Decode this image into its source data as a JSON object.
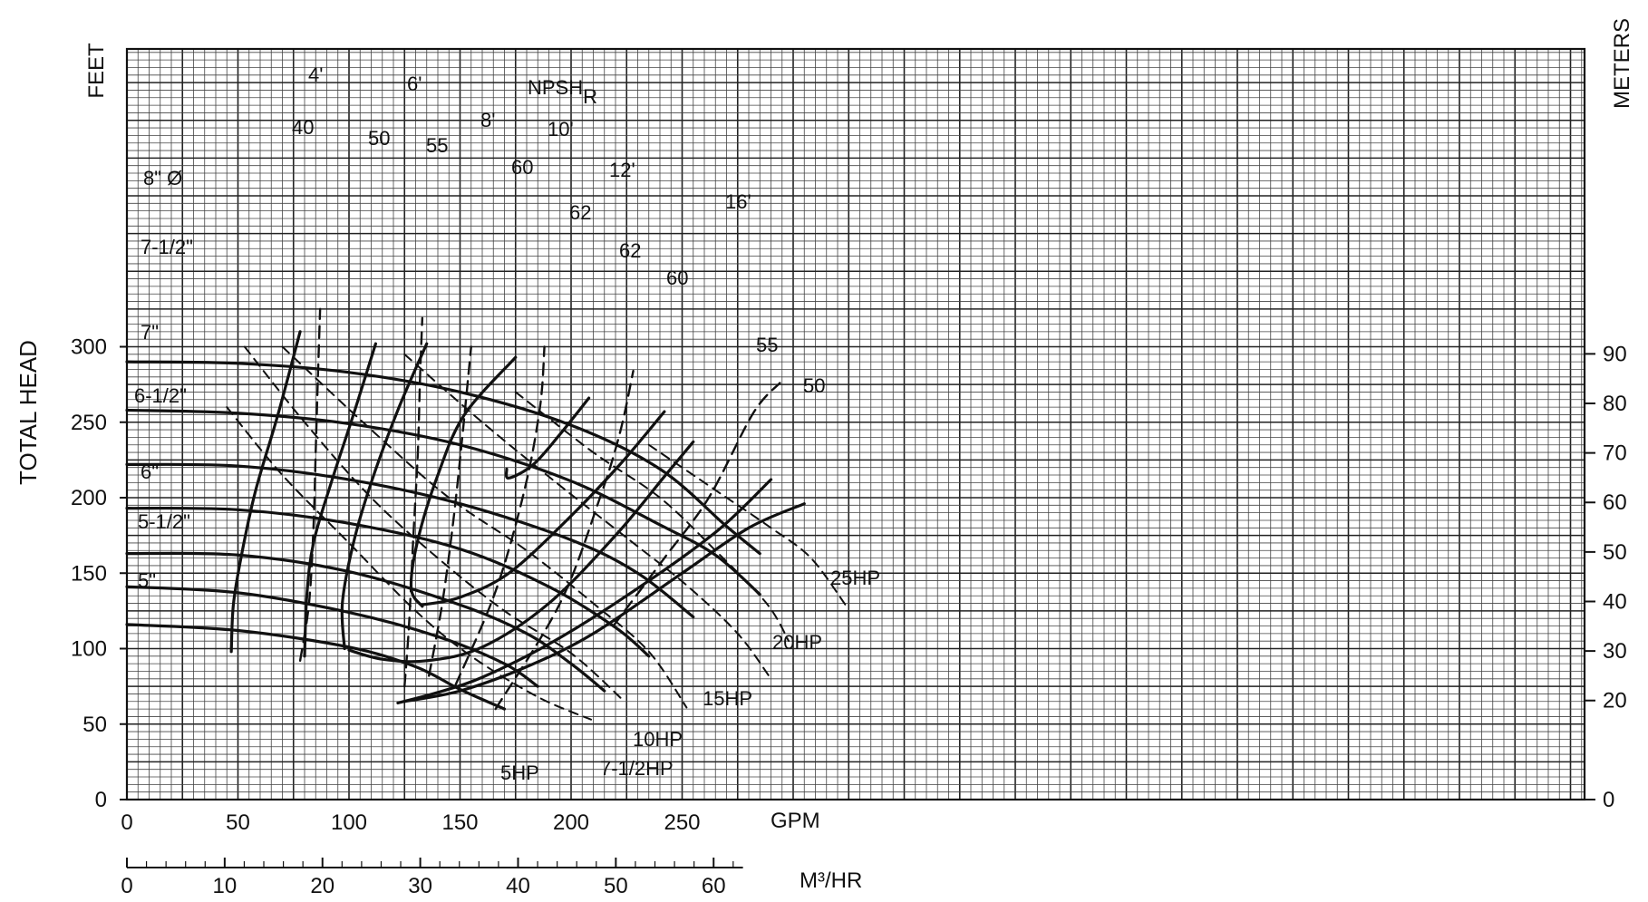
{
  "chart_data": {
    "type": "line",
    "y_axis_left": {
      "label": "TOTAL HEAD",
      "unit": "FEET",
      "ticks": [
        0,
        50,
        100,
        150,
        200,
        250,
        300
      ],
      "ylim": [
        0,
        345
      ]
    },
    "y_axis_right": {
      "label": "METERS",
      "ticks": [
        0,
        20,
        30,
        40,
        50,
        60,
        70,
        80,
        90
      ]
    },
    "x_axis": {
      "unit": "GPM",
      "ticks": [
        0,
        50,
        100,
        150,
        200,
        250
      ],
      "xlim": [
        0,
        650
      ]
    },
    "x_axis_secondary": {
      "unit": "M³/HR",
      "ticks": [
        0,
        10,
        20,
        30,
        40,
        50,
        60
      ]
    },
    "grid": true,
    "impeller_curves": [
      {
        "name": "8\" Ø",
        "points": [
          [
            0,
            290
          ],
          [
            50,
            289
          ],
          [
            100,
            283
          ],
          [
            150,
            270
          ],
          [
            200,
            248
          ],
          [
            240,
            219
          ],
          [
            270,
            181
          ],
          [
            285,
            163
          ]
        ]
      },
      {
        "name": "7-1/2\"",
        "points": [
          [
            0,
            258
          ],
          [
            50,
            256
          ],
          [
            100,
            249
          ],
          [
            150,
            235
          ],
          [
            200,
            211
          ],
          [
            240,
            182
          ],
          [
            265,
            162
          ],
          [
            285,
            136
          ]
        ]
      },
      {
        "name": "7\"",
        "points": [
          [
            0,
            222
          ],
          [
            50,
            221
          ],
          [
            100,
            212
          ],
          [
            150,
            196
          ],
          [
            200,
            172
          ],
          [
            230,
            150
          ],
          [
            255,
            121
          ]
        ]
      },
      {
        "name": "6-1/2\"",
        "points": [
          [
            0,
            193
          ],
          [
            50,
            192
          ],
          [
            100,
            183
          ],
          [
            150,
            166
          ],
          [
            190,
            141
          ],
          [
            220,
            114
          ],
          [
            235,
            95
          ]
        ]
      },
      {
        "name": "6\"",
        "points": [
          [
            0,
            163
          ],
          [
            50,
            162
          ],
          [
            100,
            151
          ],
          [
            150,
            129
          ],
          [
            180,
            110
          ],
          [
            200,
            90
          ],
          [
            215,
            72
          ]
        ]
      },
      {
        "name": "5-1/2\"",
        "points": [
          [
            0,
            141
          ],
          [
            50,
            137
          ],
          [
            100,
            124
          ],
          [
            140,
            108
          ],
          [
            170,
            90
          ],
          [
            185,
            75
          ]
        ]
      },
      {
        "name": "5\"",
        "points": [
          [
            0,
            116
          ],
          [
            50,
            112
          ],
          [
            100,
            101
          ],
          [
            130,
            88
          ],
          [
            150,
            73
          ],
          [
            170,
            60
          ]
        ]
      }
    ],
    "efficiency_curves": [
      {
        "name": "40",
        "points": [
          [
            47,
            98
          ],
          [
            48,
            130
          ],
          [
            52,
            165
          ],
          [
            58,
            205
          ],
          [
            68,
            255
          ],
          [
            78,
            310
          ]
        ]
      },
      {
        "name": "50",
        "points": [
          [
            80,
            95
          ],
          [
            81,
            135
          ],
          [
            84,
            170
          ],
          [
            92,
            210
          ],
          [
            102,
            255
          ],
          [
            112,
            302
          ]
        ]
      },
      {
        "name": "55",
        "points": [
          [
            98,
            100
          ],
          [
            97,
            130
          ],
          [
            102,
            170
          ],
          [
            110,
            210
          ],
          [
            122,
            258
          ],
          [
            135,
            302
          ]
        ]
      },
      {
        "name": "60",
        "points": [
          [
            133,
            128
          ],
          [
            128,
            140
          ],
          [
            131,
            172
          ],
          [
            140,
            215
          ],
          [
            152,
            255
          ],
          [
            175,
            293
          ]
        ]
      },
      {
        "name": "62",
        "points": [
          [
            171,
            219
          ],
          [
            172,
            213
          ],
          [
            183,
            222
          ],
          [
            195,
            242
          ],
          [
            208,
            266
          ]
        ]
      },
      {
        "name": "62",
        "points": [
          [
            133,
            129
          ],
          [
            150,
            134
          ],
          [
            172,
            150
          ],
          [
            198,
            185
          ],
          [
            222,
            222
          ],
          [
            242,
            257
          ]
        ]
      },
      {
        "name": "60",
        "points": [
          [
            100,
            99
          ],
          [
            115,
            93
          ],
          [
            135,
            92
          ],
          [
            160,
            101
          ],
          [
            190,
            130
          ],
          [
            220,
            175
          ],
          [
            242,
            214
          ],
          [
            255,
            237
          ]
        ]
      },
      {
        "name": "55",
        "points": [
          [
            122,
            64
          ],
          [
            140,
            71
          ],
          [
            160,
            81
          ],
          [
            190,
            103
          ],
          [
            225,
            135
          ],
          [
            265,
            177
          ],
          [
            290,
            212
          ]
        ]
      },
      {
        "name": "50",
        "points": [
          [
            125,
            65
          ],
          [
            150,
            72
          ],
          [
            180,
            88
          ],
          [
            210,
            110
          ],
          [
            250,
            150
          ],
          [
            280,
            180
          ],
          [
            305,
            196
          ]
        ]
      }
    ],
    "npshr_curves": [
      {
        "name": "4'",
        "points": [
          [
            78,
            92
          ],
          [
            82,
            130
          ],
          [
            84,
            180
          ],
          [
            85,
            230
          ],
          [
            86,
            280
          ],
          [
            87,
            325
          ]
        ]
      },
      {
        "name": "6'",
        "points": [
          [
            125,
            75
          ],
          [
            127,
            115
          ],
          [
            129,
            175
          ],
          [
            131,
            230
          ],
          [
            132,
            280
          ],
          [
            133,
            319
          ]
        ]
      },
      {
        "name": "8'",
        "points": [
          [
            136,
            82
          ],
          [
            142,
            130
          ],
          [
            147,
            185
          ],
          [
            151,
            240
          ],
          [
            155,
            300
          ]
        ]
      },
      {
        "name": "10'",
        "points": [
          [
            148,
            76
          ],
          [
            166,
            138
          ],
          [
            179,
            205
          ],
          [
            186,
            260
          ],
          [
            188,
            300
          ]
        ]
      },
      {
        "name": "12'",
        "points": [
          [
            166,
            60
          ],
          [
            195,
            130
          ],
          [
            213,
            200
          ],
          [
            222,
            243
          ],
          [
            228,
            284
          ]
        ]
      },
      {
        "name": "16'",
        "points": [
          [
            219,
            115
          ],
          [
            242,
            160
          ],
          [
            262,
            200
          ],
          [
            282,
            256
          ],
          [
            294,
            276
          ]
        ]
      }
    ],
    "power_curves": [
      {
        "name": "5HP",
        "points": [
          [
            45,
            260
          ],
          [
            70,
            215
          ],
          [
            100,
            170
          ],
          [
            130,
            125
          ],
          [
            155,
            95
          ],
          [
            185,
            68
          ],
          [
            209,
            53
          ]
        ]
      },
      {
        "name": "7-1/2HP",
        "points": [
          [
            53,
            300
          ],
          [
            80,
            250
          ],
          [
            110,
            200
          ],
          [
            140,
            160
          ],
          [
            170,
            125
          ],
          [
            200,
            97
          ],
          [
            224,
            65
          ]
        ]
      },
      {
        "name": "10HP",
        "points": [
          [
            70,
            300
          ],
          [
            110,
            245
          ],
          [
            145,
            200
          ],
          [
            180,
            165
          ],
          [
            210,
            130
          ],
          [
            235,
            98
          ],
          [
            252,
            61
          ]
        ]
      },
      {
        "name": "15HP",
        "points": [
          [
            125,
            295
          ],
          [
            160,
            250
          ],
          [
            195,
            208
          ],
          [
            228,
            170
          ],
          [
            252,
            142
          ],
          [
            275,
            110
          ],
          [
            290,
            80
          ]
        ]
      },
      {
        "name": "20HP",
        "points": [
          [
            175,
            270
          ],
          [
            210,
            230
          ],
          [
            240,
            200
          ],
          [
            265,
            165
          ],
          [
            288,
            130
          ],
          [
            298,
            105
          ]
        ]
      },
      {
        "name": "25HP",
        "points": [
          [
            235,
            235
          ],
          [
            265,
            205
          ],
          [
            290,
            180
          ],
          [
            308,
            160
          ],
          [
            324,
            128
          ]
        ]
      }
    ],
    "labels": {
      "axis_left_unit": "FEET",
      "axis_left_title": "TOTAL HEAD",
      "axis_right_title": "METERS",
      "x_unit": "GPM",
      "x2_unit": "M³/HR",
      "npsh_title": "NPSH",
      "npsh_sub": "R",
      "eff_40": "40",
      "eff_50a": "50",
      "eff_55a": "55",
      "eff_60a": "60",
      "eff_62a": "62",
      "eff_62b": "62",
      "eff_60b": "60",
      "eff_55b": "55",
      "eff_50b": "50",
      "npsh_4": "4'",
      "npsh_6": "6'",
      "npsh_8": "8'",
      "npsh_10": "10'",
      "npsh_12": "12'",
      "npsh_16": "16'",
      "hp_5": "5HP",
      "hp_7": "7-1/2HP",
      "hp_10": "10HP",
      "hp_15": "15HP",
      "hp_20": "20HP",
      "hp_25": "25HP",
      "imp_8": "8\" Ø",
      "imp_75": "7-1/2\"",
      "imp_7": "7\"",
      "imp_65": "6-1/2\"",
      "imp_6": "6\"",
      "imp_55": "5-1/2\"",
      "imp_5": "5\""
    },
    "colors": {
      "ink": "#111111",
      "grid_major": "#222222",
      "grid_minor": "#444444"
    }
  }
}
